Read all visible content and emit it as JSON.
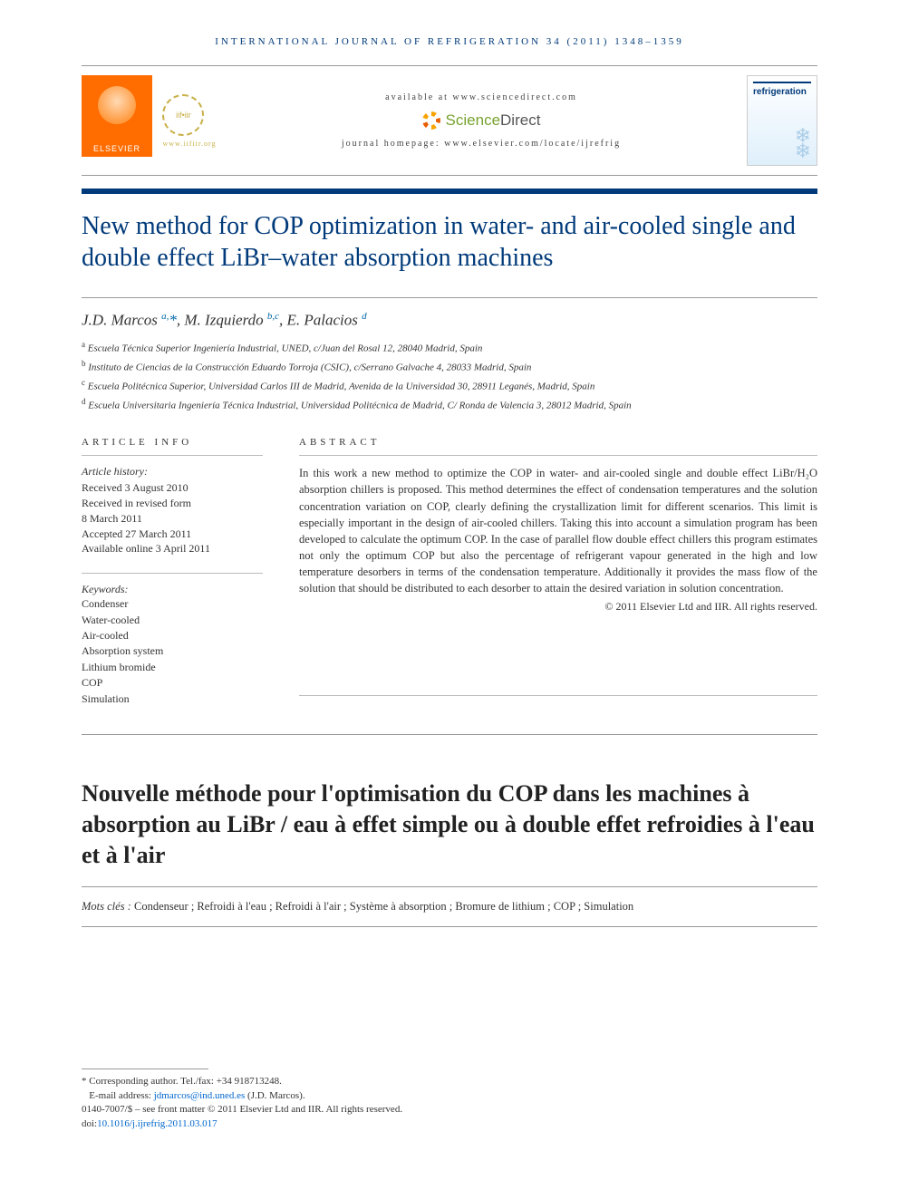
{
  "running_head": "INTERNATIONAL JOURNAL OF REFRIGERATION 34 (2011) 1348–1359",
  "masthead": {
    "elsevier": "ELSEVIER",
    "iifiir": "iif•iir",
    "iifiir_url": "www.iifiir.org",
    "available": "available at www.sciencedirect.com",
    "sd_green": "Science",
    "sd_gray": "Direct",
    "homepage": "journal homepage: www.elsevier.com/locate/ijrefrig",
    "cover_title": "refrigeration"
  },
  "title": "New method for COP optimization in water- and air-cooled single and double effect LiBr–water absorption machines",
  "authors_html": "J.D. Marcos <sup class='sup'>a,</sup><span class='star'>*</span>, M. Izquierdo <sup class='sup'>b,c</sup>, E. Palacios <sup class='sup'>d</sup>",
  "affiliations": [
    {
      "sup": "a",
      "text": "Escuela Técnica Superior Ingeniería Industrial, UNED, c/Juan del Rosal 12, 28040 Madrid, Spain"
    },
    {
      "sup": "b",
      "text": "Instituto de Ciencias de la Construcción Eduardo Torroja (CSIC), c/Serrano Galvache 4, 28033 Madrid, Spain"
    },
    {
      "sup": "c",
      "text": "Escuela Politécnica Superior, Universidad Carlos III de Madrid, Avenida de la Universidad 30, 28911 Leganés, Madrid, Spain"
    },
    {
      "sup": "d",
      "text": "Escuela Universitaria Ingeniería Técnica Industrial, Universidad Politécnica de Madrid, C/ Ronda de Valencia 3, 28012 Madrid, Spain"
    }
  ],
  "info": {
    "label": "ARTICLE INFO",
    "history_label": "Article history:",
    "history": [
      "Received 3 August 2010",
      "Received in revised form",
      "8 March 2011",
      "Accepted 27 March 2011",
      "Available online 3 April 2011"
    ],
    "keywords_label": "Keywords:",
    "keywords": [
      "Condenser",
      "Water-cooled",
      "Air-cooled",
      "Absorption system",
      "Lithium bromide",
      "COP",
      "Simulation"
    ]
  },
  "abstract": {
    "label": "ABSTRACT",
    "text": "In this work a new method to optimize the COP in water- and air-cooled single and double effect LiBr/H₂O absorption chillers is proposed. This method determines the effect of condensation temperatures and the solution concentration variation on COP, clearly defining the crystallization limit for different scenarios. This limit is especially important in the design of air-cooled chillers. Taking this into account a simulation program has been developed to calculate the optimum COP. In the case of parallel flow double effect chillers this program estimates not only the optimum COP but also the percentage of refrigerant vapour generated in the high and low temperature desorbers in terms of the condensation temperature. Additionally it provides the mass flow of the solution that should be distributed to each desorber to attain the desired variation in solution concentration.",
    "copyright": "© 2011 Elsevier Ltd and IIR. All rights reserved."
  },
  "french": {
    "title": "Nouvelle méthode pour l'optimisation du COP dans les machines à absorption au LiBr / eau à effet simple ou à double effet refroidies à l'eau et à l'air",
    "mots_label": "Mots clés :",
    "mots": " Condenseur ; Refroidi à l'eau ; Refroidi à l'air ; Système à absorption ; Bromure de lithium ; COP ; Simulation"
  },
  "footnotes": {
    "corr": "* Corresponding author. Tel./fax: +34 918713248.",
    "email_label": "E-mail address: ",
    "email": "jdmarcos@ind.uned.es",
    "email_paren": " (J.D. Marcos).",
    "front": "0140-7007/$ – see front matter © 2011 Elsevier Ltd and IIR. All rights reserved.",
    "doi_label": "doi:",
    "doi": "10.1016/j.ijrefrig.2011.03.017"
  }
}
